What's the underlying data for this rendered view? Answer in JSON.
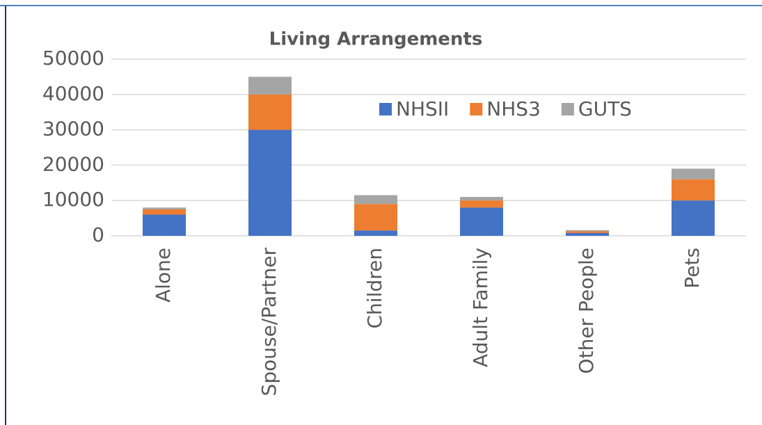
{
  "chart_data": {
    "type": "stacked_bar",
    "title": "Living Arrangements",
    "categories": [
      "Alone",
      "Spouse/Partner",
      "Children",
      "Adult Family",
      "Other People",
      "Pets"
    ],
    "series": [
      {
        "name": "NHSII",
        "color": "#4472c4",
        "values": [
          6000,
          30000,
          1500,
          8000,
          800,
          10000
        ]
      },
      {
        "name": "NHS3",
        "color": "#ed7d31",
        "values": [
          1500,
          10000,
          7500,
          2000,
          500,
          6000
        ]
      },
      {
        "name": "GUTS",
        "color": "#a5a5a5",
        "values": [
          500,
          5000,
          2500,
          1000,
          300,
          3000
        ]
      }
    ],
    "ylim": [
      0,
      50000
    ],
    "yticks": [
      0,
      10000,
      20000,
      30000,
      40000,
      50000
    ],
    "grid": true
  }
}
